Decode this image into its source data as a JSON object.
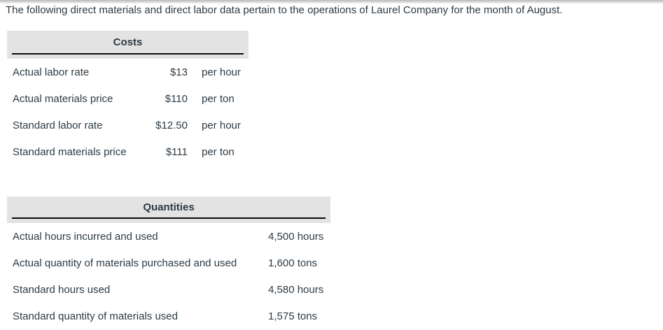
{
  "intro": "The following direct materials and direct labor data pertain to the operations of Laurel Company for the month of August.",
  "costs_table": {
    "title": "Costs",
    "rows": [
      {
        "label": "Actual labor rate",
        "value": "$13",
        "unit": "per hour"
      },
      {
        "label": "Actual materials price",
        "value": "$110",
        "unit": "per ton"
      },
      {
        "label": "Standard labor rate",
        "value": "$12.50",
        "unit": "per hour"
      },
      {
        "label": "Standard materials price",
        "value": "$111",
        "unit": "per ton"
      }
    ]
  },
  "quantities_table": {
    "title": "Quantities",
    "rows": [
      {
        "label": "Actual hours incurred and used",
        "value": "4,500 hours"
      },
      {
        "label": "Actual quantity of materials purchased and used",
        "value": "1,600 tons"
      },
      {
        "label": "Standard hours used",
        "value": "4,580 hours"
      },
      {
        "label": "Standard quantity of materials used",
        "value": "1,575 tons"
      }
    ]
  },
  "colors": {
    "text": "#2d3b45",
    "header_background": "#e3e3e3",
    "underline": "#0a0a0a"
  }
}
